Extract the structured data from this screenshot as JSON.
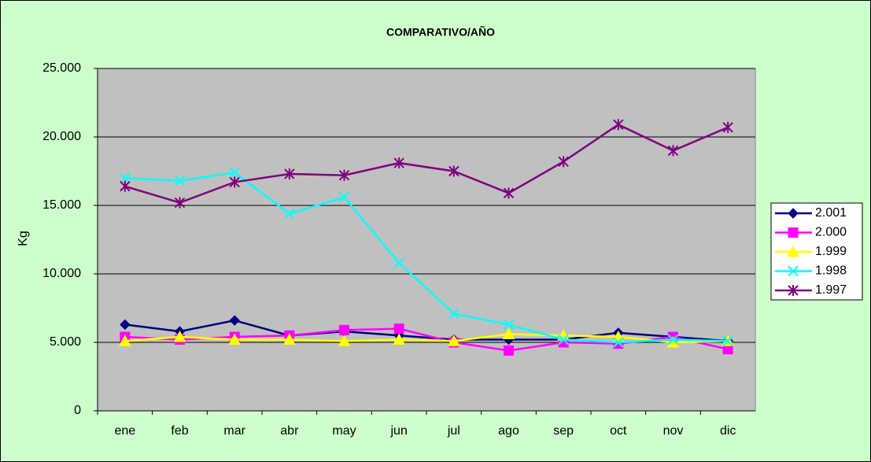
{
  "chart_data": {
    "type": "line",
    "title": "COMPARATIVO/AÑO",
    "y_label": "Kg",
    "categories": [
      "ene",
      "feb",
      "mar",
      "abr",
      "may",
      "jun",
      "jul",
      "ago",
      "sep",
      "oct",
      "nov",
      "dic"
    ],
    "series": [
      {
        "name": "2.001",
        "color": "#000080",
        "marker": "diamond",
        "values": [
          6300,
          5800,
          6600,
          5500,
          5800,
          5500,
          5200,
          5200,
          5200,
          5700,
          5400,
          5100
        ]
      },
      {
        "name": "2.000",
        "color": "#FF00FF",
        "marker": "square",
        "values": [
          5400,
          5200,
          5400,
          5500,
          5900,
          6000,
          5000,
          4400,
          5000,
          4900,
          5400,
          4500
        ]
      },
      {
        "name": "1.999",
        "color": "#FFFF00",
        "marker": "triangle",
        "values": [
          5100,
          5400,
          5200,
          5200,
          5100,
          5200,
          5100,
          5600,
          5500,
          5400,
          5000,
          5100
        ]
      },
      {
        "name": "1.998",
        "color": "#00FFFF",
        "marker": "x",
        "values": [
          17000,
          16800,
          17400,
          14400,
          15600,
          10800,
          7100,
          6300,
          5200,
          5000,
          5200,
          5100
        ]
      },
      {
        "name": "1.997",
        "color": "#800080",
        "marker": "star",
        "values": [
          16400,
          15200,
          16700,
          17300,
          17200,
          18100,
          17500,
          15900,
          18200,
          20900,
          19000,
          20700
        ]
      }
    ],
    "ylim": [
      0,
      25000
    ],
    "yticks": [
      0,
      {
        "value": 5000,
        "label": "5.000"
      },
      {
        "value": 10000,
        "label": "10.000"
      },
      {
        "value": 15000,
        "label": "15.000"
      },
      {
        "value": 20000,
        "label": "20.000"
      },
      {
        "value": 25000,
        "label": "25.000"
      }
    ],
    "grid": true,
    "legend": "right"
  }
}
